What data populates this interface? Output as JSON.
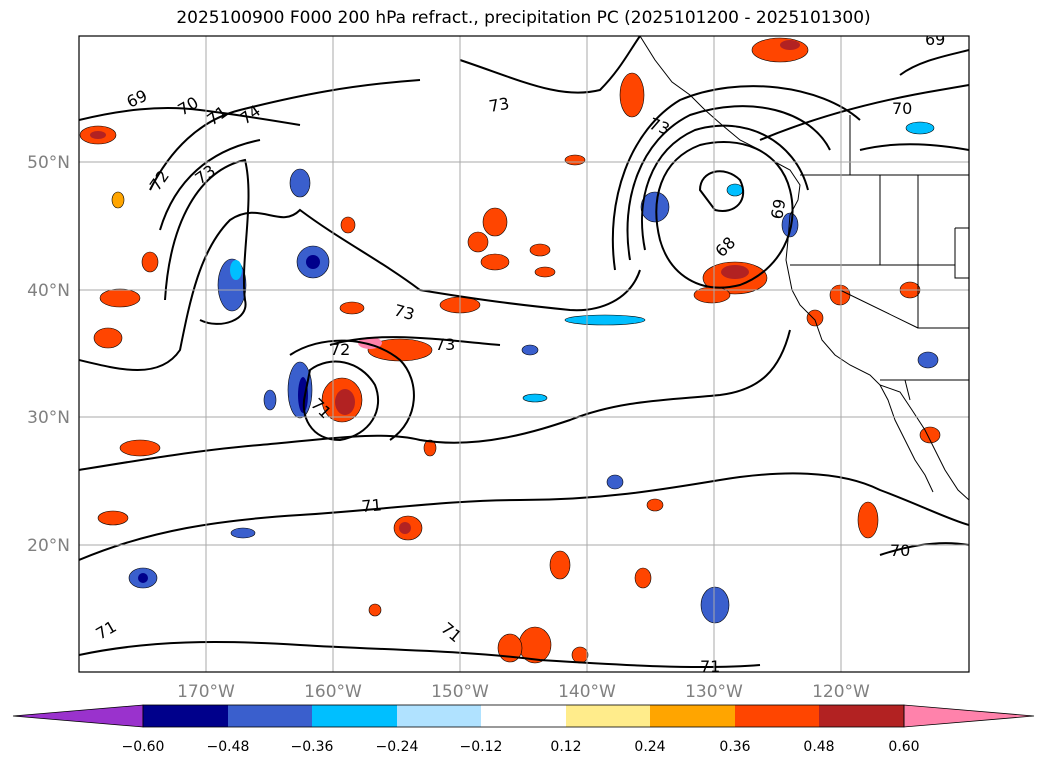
{
  "title": "2025100900 F000 200 hPa refract., precipitation PC (2025101200 - 2025101300)",
  "lon_labels": [
    "170°W",
    "160°W",
    "150°W",
    "140°W",
    "130°W",
    "120°W"
  ],
  "lat_labels": [
    "50°N",
    "40°N",
    "30°N",
    "20°N"
  ],
  "contour_labels": [
    "69",
    "70",
    "71",
    "72",
    "73",
    "74",
    "73",
    "73",
    "73",
    "73",
    "72",
    "71",
    "71",
    "68",
    "69",
    "70",
    "70",
    "71",
    "71",
    "71",
    "69"
  ],
  "colorbar": {
    "ticks": [
      "−0.60",
      "−0.48",
      "−0.36",
      "−0.24",
      "−0.12",
      "0.12",
      "0.24",
      "0.36",
      "0.48",
      "0.60"
    ],
    "colors": [
      "#9a32cd",
      "#00008b",
      "#3a5fcd",
      "#00bfff",
      "#b0e2ff",
      "#ffffff",
      "#ffec8b",
      "#ffa500",
      "#ff4500",
      "#b22222",
      "#ff82ab"
    ]
  }
}
